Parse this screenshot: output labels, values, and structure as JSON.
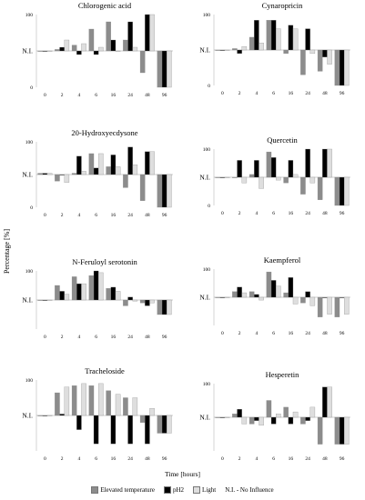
{
  "figure": {
    "ylabel": "Percentage [%]",
    "xlabel": "Time [hours]",
    "legend": [
      "Elevated temperature",
      "pH2",
      "Light",
      "N.I. - No Influence"
    ],
    "ni_label": "N.I."
  },
  "colors": {
    "Elevated temperature": "#8c8c8c",
    "pH2": "#000000",
    "Light": "#dedede"
  },
  "chart_data": [
    {
      "type": "bar",
      "title": "Chlorogenic acid",
      "categories": [
        "0",
        "2",
        "4",
        "6",
        "16",
        "24",
        "48",
        "96"
      ],
      "yticks": [
        "100",
        "N.I.",
        "0"
      ],
      "series": [
        {
          "name": "Elevated temperature",
          "values": [
            50,
            52,
            58,
            80,
            90,
            65,
            20,
            0
          ]
        },
        {
          "name": "pH2",
          "values": [
            50,
            55,
            45,
            45,
            65,
            90,
            100,
            0
          ]
        },
        {
          "name": "Light",
          "values": [
            50,
            65,
            60,
            55,
            50,
            55,
            100,
            0
          ]
        }
      ]
    },
    {
      "type": "bar",
      "title": "Cynaropricin",
      "categories": [
        "0",
        "2",
        "4",
        "6",
        "16",
        "24",
        "48",
        "96"
      ],
      "yticks": [
        "100",
        "N.I.",
        "0"
      ],
      "series": [
        {
          "name": "Elevated temperature",
          "values": [
            50,
            52,
            68,
            92,
            45,
            15,
            20,
            0
          ]
        },
        {
          "name": "pH2",
          "values": [
            50,
            45,
            92,
            92,
            85,
            80,
            40,
            0
          ]
        },
        {
          "name": "Light",
          "values": [
            50,
            55,
            60,
            80,
            80,
            45,
            30,
            0
          ]
        }
      ]
    },
    {
      "type": "bar",
      "title": "20-Hydroxyecdysone",
      "categories": [
        "0",
        "2",
        "4",
        "6",
        "16",
        "24",
        "48",
        "96"
      ],
      "yticks": [
        "100",
        "N.I.",
        "0"
      ],
      "series": [
        {
          "name": "Elevated temperature",
          "values": [
            52,
            40,
            52,
            82,
            62,
            30,
            10,
            0
          ]
        },
        {
          "name": "pH2",
          "values": [
            52,
            50,
            78,
            60,
            80,
            92,
            85,
            0
          ]
        },
        {
          "name": "Light",
          "values": [
            52,
            38,
            55,
            82,
            62,
            65,
            85,
            0
          ]
        }
      ]
    },
    {
      "type": "bar",
      "title": "Quercetin",
      "categories": [
        "0",
        "2",
        "4",
        "6",
        "16",
        "24",
        "48",
        "96"
      ],
      "yticks": [
        "100",
        "N.I.",
        "0"
      ],
      "series": [
        {
          "name": "Elevated temperature",
          "values": [
            50,
            50,
            55,
            95,
            40,
            20,
            10,
            0
          ]
        },
        {
          "name": "pH2",
          "values": [
            50,
            80,
            80,
            85,
            80,
            100,
            100,
            0
          ]
        },
        {
          "name": "Light",
          "values": [
            50,
            40,
            30,
            45,
            55,
            40,
            100,
            0
          ]
        }
      ]
    },
    {
      "type": "bar",
      "title": "N-Feruloyl serotonin",
      "categories": [
        "0",
        "2",
        "4",
        "6",
        "16",
        "24",
        "48",
        "96"
      ],
      "yticks": [
        "100",
        "N.I."
      ],
      "series": [
        {
          "name": "Elevated temperature",
          "values": [
            50,
            75,
            90,
            92,
            70,
            40,
            45,
            25
          ]
        },
        {
          "name": "pH2",
          "values": [
            50,
            65,
            78,
            100,
            72,
            55,
            40,
            25
          ]
        },
        {
          "name": "Light",
          "values": [
            50,
            60,
            78,
            97,
            65,
            48,
            45,
            25
          ]
        }
      ]
    },
    {
      "type": "bar",
      "title": "Kaempferol",
      "categories": [
        "0",
        "2",
        "4",
        "6",
        "16",
        "24",
        "48",
        "96"
      ],
      "yticks": [
        "100",
        "N.I."
      ],
      "series": [
        {
          "name": "Elevated temperature",
          "values": [
            50,
            60,
            60,
            95,
            58,
            40,
            15,
            15
          ]
        },
        {
          "name": "pH2",
          "values": [
            50,
            68,
            55,
            80,
            85,
            60,
            50,
            50
          ]
        },
        {
          "name": "Light",
          "values": [
            50,
            58,
            45,
            70,
            38,
            35,
            20,
            20
          ]
        }
      ]
    },
    {
      "type": "bar",
      "title": "Tracheloside",
      "categories": [
        "0",
        "2",
        "4",
        "6",
        "16",
        "24",
        "48",
        "96"
      ],
      "yticks": [
        "100",
        "N.I."
      ],
      "series": [
        {
          "name": "Elevated temperature",
          "values": [
            50,
            82,
            92,
            92,
            85,
            75,
            40,
            25
          ]
        },
        {
          "name": "pH2",
          "values": [
            50,
            52,
            30,
            10,
            10,
            10,
            10,
            25
          ]
        },
        {
          "name": "Light",
          "values": [
            50,
            90,
            95,
            95,
            80,
            75,
            60,
            25
          ]
        }
      ]
    },
    {
      "type": "bar",
      "title": "Hesperetin",
      "categories": [
        "0",
        "2",
        "4",
        "6",
        "16",
        "24",
        "48",
        "96"
      ],
      "yticks": [
        "100",
        "N.I."
      ],
      "series": [
        {
          "name": "Elevated temperature",
          "values": [
            50,
            55,
            40,
            75,
            65,
            40,
            10,
            10
          ]
        },
        {
          "name": "pH2",
          "values": [
            50,
            62,
            45,
            40,
            40,
            45,
            95,
            10
          ]
        },
        {
          "name": "Light",
          "values": [
            50,
            40,
            38,
            55,
            58,
            65,
            95,
            10
          ]
        }
      ]
    }
  ]
}
